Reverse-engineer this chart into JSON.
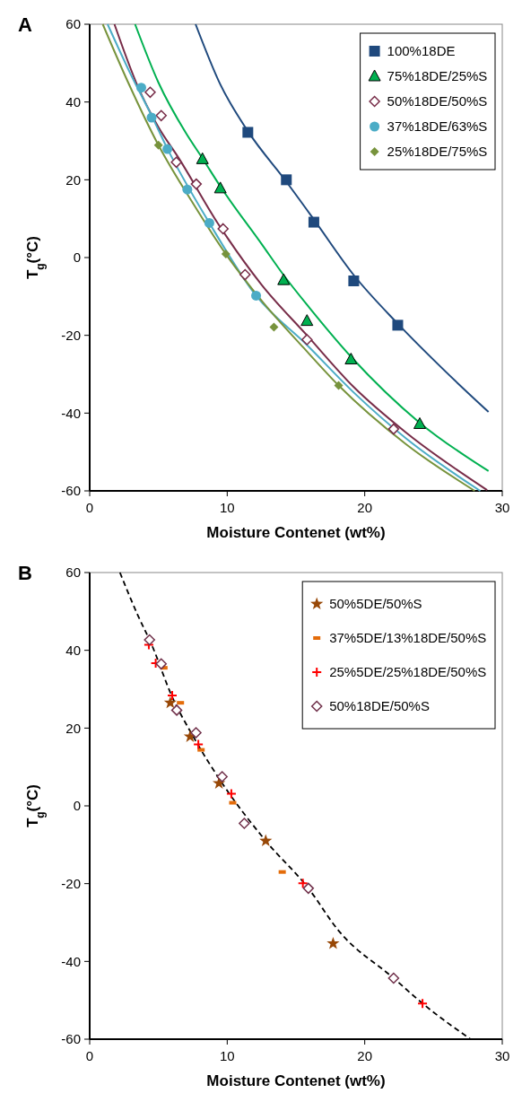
{
  "chart_data": [
    {
      "type": "scatter",
      "title": "A",
      "xlabel": "Moisture Contenet (wt%)",
      "ylabel": "T$_{g}$(°C)",
      "xlim": [
        0,
        30
      ],
      "ylim": [
        -60,
        60
      ],
      "xticks": [
        0,
        10,
        20,
        30
      ],
      "yticks": [
        -60,
        -40,
        -20,
        0,
        20,
        40,
        60
      ],
      "grid": false,
      "legend": "top right",
      "series": [
        {
          "name": "100%18DE",
          "color": "#1f497d",
          "marker": "square",
          "x": [
            11.5,
            14.3,
            16.3,
            19.2,
            22.4
          ],
          "values": [
            32.2,
            20,
            9.1,
            -6,
            -17.4
          ]
        },
        {
          "name": "75%18DE/25%S",
          "color": "#00b050",
          "marker": "triangle",
          "x": [
            8.2,
            9.5,
            14.1,
            15.8,
            19,
            24
          ],
          "values": [
            25.3,
            17.8,
            -5.8,
            -16.3,
            -26.2,
            -42.8
          ]
        },
        {
          "name": "50%18DE/50%S",
          "color": "#772c48",
          "marker": "diamond-open",
          "x": [
            4.4,
            5.2,
            6.3,
            7.75,
            9.7,
            11.3,
            15.8,
            22.1
          ],
          "values": [
            42.5,
            36.5,
            24.5,
            18.9,
            7.4,
            -4.4,
            -21.1,
            -44.1
          ]
        },
        {
          "name": "37%18DE/63%S",
          "color": "#4bacc6",
          "marker": "circle",
          "x": [
            3.75,
            4.5,
            5.65,
            7.1,
            8.7,
            12.1
          ],
          "values": [
            43.7,
            36,
            27.9,
            17.5,
            8.9,
            -9.8
          ]
        },
        {
          "name": "25%18DE/75%S",
          "color": "#77933c",
          "marker": "diamond",
          "x": [
            5,
            9.9,
            13.4,
            18.1
          ],
          "values": [
            28.9,
            0.9,
            -17.9,
            -32.9
          ]
        },
        {
          "type": "line",
          "color": "#1f497d",
          "x": [
            7.7,
            9.5,
            11.5,
            14.3,
            16.3,
            19.2,
            22.4,
            25.9,
            29
          ],
          "values": [
            60,
            44.5,
            32.5,
            19.5,
            9.8,
            -4.5,
            -17,
            -29.4,
            -39.7
          ]
        },
        {
          "type": "line",
          "color": "#00b050",
          "x": [
            3.3,
            5,
            7,
            8.2,
            9.5,
            12.5,
            14.1,
            16,
            19,
            24,
            29
          ],
          "values": [
            60,
            45,
            32,
            25.5,
            18.3,
            3.5,
            -4.5,
            -13,
            -25.5,
            -42.5,
            -54.9
          ]
        },
        {
          "type": "line",
          "color": "#772c48",
          "x": [
            1.8,
            3.5,
            5,
            6.45,
            9.3,
            12.5,
            15.8,
            19.2,
            23,
            28.9
          ],
          "values": [
            60,
            44,
            33.5,
            25.7,
            8.9,
            -7,
            -20,
            -33.3,
            -45,
            -59.8
          ]
        },
        {
          "type": "line",
          "color": "#4bacc6",
          "x": [
            1.3,
            3,
            4.5,
            5.65,
            8.7,
            12.1,
            15.8,
            19.2,
            23,
            28.4
          ],
          "values": [
            60,
            47,
            36.5,
            28,
            8.9,
            -9.8,
            -22.5,
            -34.7,
            -46.5,
            -60
          ]
        },
        {
          "type": "line",
          "color": "#77933c",
          "x": [
            0.95,
            2.8,
            5,
            7.5,
            9.9,
            12.6,
            15.5,
            18.1,
            23,
            28
          ],
          "values": [
            60,
            45,
            28.9,
            14,
            0.9,
            -11.5,
            -23,
            -32.9,
            -48,
            -60
          ]
        }
      ]
    },
    {
      "type": "scatter",
      "title": "B",
      "xlabel": "Moisture Contenet (wt%)",
      "ylabel": "T$_{g}$(°C)",
      "xlim": [
        0,
        30
      ],
      "ylim": [
        -60,
        60
      ],
      "xticks": [
        0,
        10,
        20,
        30
      ],
      "yticks": [
        -60,
        -40,
        -20,
        0,
        20,
        40,
        60
      ],
      "grid": false,
      "legend": "top right",
      "series": [
        {
          "name": "50%5DE/50%S",
          "color": "#984807",
          "marker": "star",
          "x": [
            5.86,
            7.3,
            9.4,
            12.8,
            17.7
          ],
          "values": [
            26.5,
            17.8,
            5.8,
            -9,
            -35.4
          ]
        },
        {
          "name": "37%5DE/13%18DE/50%S",
          "color": "#e46c0a",
          "x": [
            5.4,
            6.6,
            8.1,
            10.4,
            14
          ],
          "values": [
            35.5,
            26.5,
            14.4,
            0.8,
            -17
          ]
        },
        {
          "name": "25%5DE/25%18DE/50%S",
          "color": "#ff0000",
          "marker": "cross",
          "x": [
            4.3,
            4.8,
            6,
            7.9,
            10.3,
            15.5,
            24.2
          ],
          "values": [
            41.4,
            36.7,
            28.4,
            15.8,
            3.1,
            -19.9,
            -50.8
          ]
        },
        {
          "name": "50%18DE/50%S",
          "color": "#70304a",
          "marker": "diamond-open",
          "x": [
            4.35,
            5.2,
            6.33,
            7.73,
            9.63,
            11.24,
            15.9,
            22.1
          ],
          "values": [
            42.7,
            36.5,
            24.6,
            18.8,
            7.5,
            -4.5,
            -21.2,
            -44.3
          ]
        },
        {
          "type": "line",
          "color": "#000000",
          "line_style": "dashed",
          "x": [
            2.2,
            3.5,
            4.5,
            6,
            7.5,
            9.6,
            12.8,
            15.9,
            18.1,
            22.1,
            24.2,
            27.7
          ],
          "values": [
            60,
            49,
            41.5,
            28,
            18,
            6,
            -9,
            -21.2,
            -32.1,
            -44.3,
            -50.8,
            -60
          ]
        }
      ]
    }
  ]
}
